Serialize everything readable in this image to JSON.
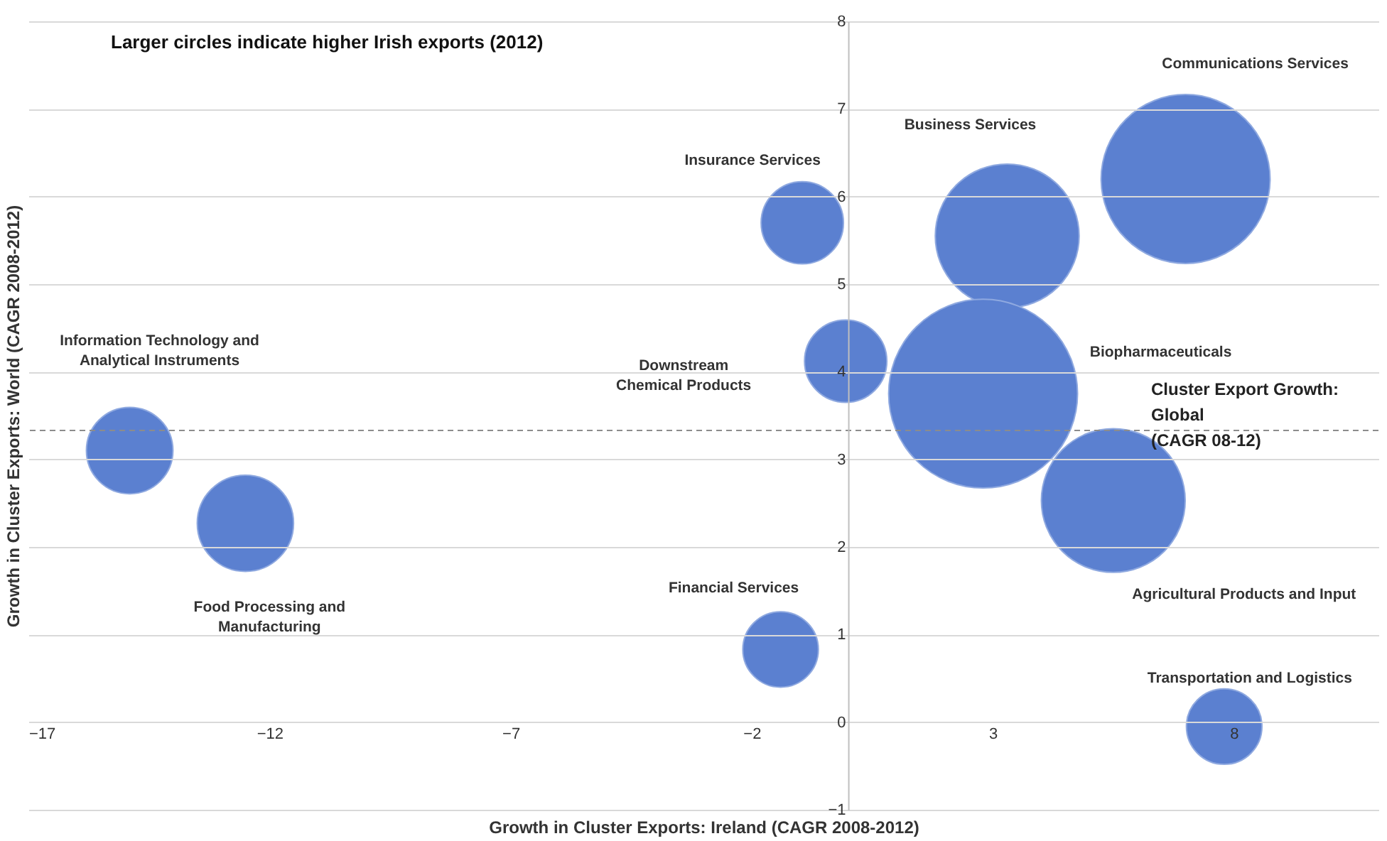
{
  "chart_data": {
    "type": "bubble",
    "xlabel": "Growth in Cluster Exports: Ireland (CAGR 2008-2012)",
    "ylabel": "Growth in Cluster Exports: World (CAGR 2008-2012)",
    "x": [
      -14.9,
      -12.5,
      -0.95,
      -0.05,
      -1.4,
      3.3,
      7.0,
      2.8,
      5.5,
      7.8
    ],
    "values": [
      3.1,
      2.27,
      5.7,
      4.12,
      0.83,
      5.55,
      6.2,
      3.75,
      2.53,
      -0.05
    ],
    "sizes": [
      0.21,
      0.26,
      0.19,
      0.19,
      0.16,
      0.58,
      0.8,
      1,
      0.58,
      0.16
    ],
    "color": "#5b80d0",
    "xlim": [
      -17,
      11
    ],
    "xticks": [
      -17,
      -12,
      -7,
      -2,
      3,
      8
    ],
    "ylim": [
      -1,
      8
    ],
    "yticks": [
      -1,
      0,
      1,
      2,
      3,
      4,
      5,
      6,
      7,
      8
    ],
    "grid": "y",
    "ref_lines": [
      {
        "axis": "y",
        "value": 3.33,
        "label": "Cluster Export Growth:\nGlobal\n(CAGR 08-12)",
        "color": "#8c8c8c",
        "line_style": "dashed"
      }
    ],
    "annotations": [
      "Larger circles indicate higher Irish exports (2012)",
      "Information Technology and\nAnalytical Instruments",
      "Food Processing and\nManufacturing",
      "Insurance Services",
      "Downstream\nChemical Products",
      "Financial Services",
      "Business Services",
      "Communications Services",
      "Biopharmaceuticals",
      "Agricultural Products and Input",
      "Transportation and Logistics"
    ]
  }
}
